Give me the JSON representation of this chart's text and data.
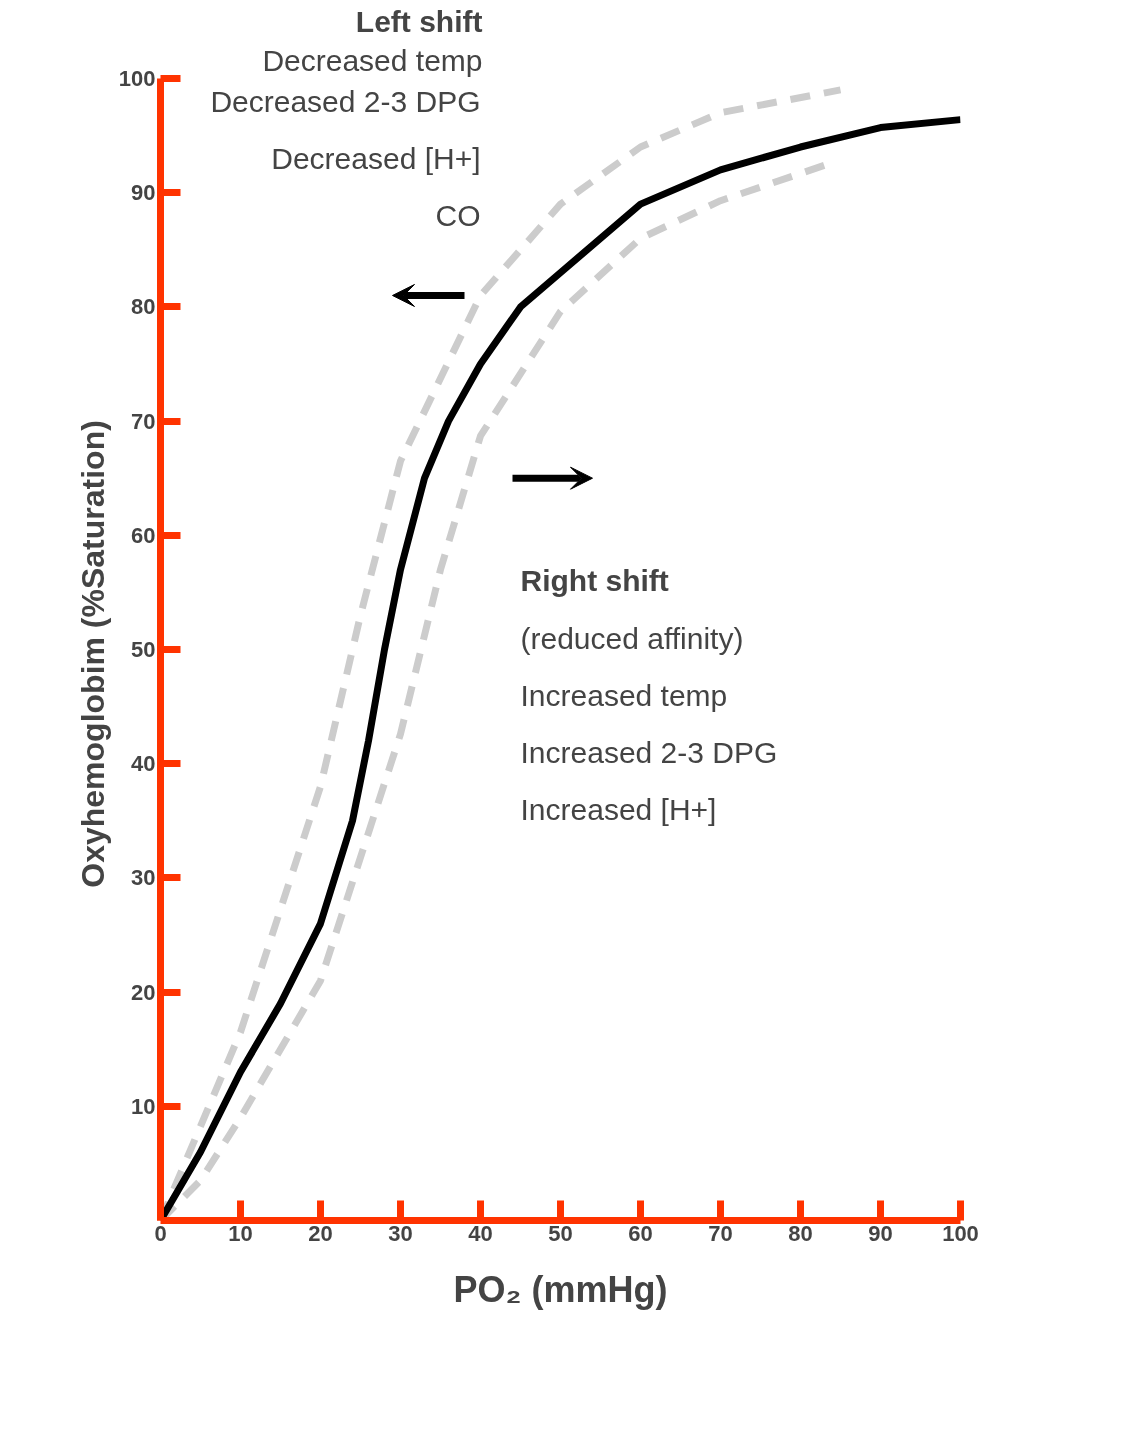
{
  "chart_data": {
    "type": "line",
    "xlabel": "PO₂ (mmHg)",
    "ylabel": "Oxyhemoglobim  (%Saturation)",
    "xlim": [
      0,
      100
    ],
    "ylim": [
      0,
      100
    ],
    "xticks": [
      0,
      10,
      20,
      30,
      40,
      50,
      60,
      70,
      80,
      90,
      100
    ],
    "yticks": [
      10,
      20,
      30,
      40,
      50,
      60,
      70,
      80,
      90,
      100
    ],
    "grid": false,
    "series": [
      {
        "color": "#cccccc",
        "line_style": "dashed",
        "x": [
          0,
          10,
          20,
          25,
          30,
          40,
          50,
          60,
          70,
          85
        ],
        "values": [
          0,
          16.5,
          38,
          53,
          66.5,
          81,
          89,
          94,
          97,
          99
        ]
      },
      {
        "color": "#cccccc",
        "line_style": "dashed",
        "x": [
          0,
          5,
          10,
          20,
          30,
          35,
          40,
          50,
          60,
          70,
          83
        ],
        "values": [
          0,
          3.5,
          9,
          21,
          42.6,
          57,
          68.7,
          79.6,
          86,
          89.3,
          92.4
        ]
      },
      {
        "color": "#000000",
        "line_style": "solid",
        "x": [
          0,
          5,
          10,
          15,
          20,
          24,
          26,
          28,
          30,
          33,
          36,
          40,
          45,
          50,
          60,
          70,
          80,
          90,
          100
        ],
        "values": [
          0,
          6,
          13,
          19,
          26,
          35,
          42,
          50,
          57,
          65,
          70,
          75,
          80,
          83,
          89,
          92,
          94,
          95.7,
          96.4
        ]
      }
    ],
    "annotations": [
      "Left shift",
      "Decreased temp",
      "Decreased 2-3 DPG",
      "Decreased [H+]",
      "CO",
      "Right shift",
      "(reduced affinity)",
      "Increased temp",
      "Increased 2-3 DPG",
      "Increased [H+]"
    ]
  }
}
